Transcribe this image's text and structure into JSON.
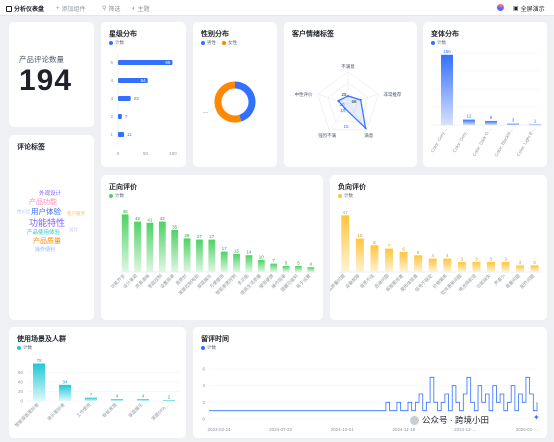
{
  "topbar": {
    "title": "分析仪表盘",
    "add_component": "添加组件",
    "filter": "筛选",
    "theme": "主题",
    "fullscreen": "全屏演示"
  },
  "kpi": {
    "label": "产品评论数量",
    "value": "194"
  },
  "legend_count": "计数",
  "star": {
    "title": "星级分布",
    "chart_data": {
      "type": "bar",
      "categories": [
        "5",
        "4",
        "3",
        "2",
        "1"
      ],
      "values": [
        99,
        54,
        23,
        7,
        11
      ],
      "xlim": [
        0,
        100
      ],
      "xticks": [
        "0",
        "50",
        "100"
      ]
    }
  },
  "gender": {
    "title": "性别分布",
    "legend": [
      "男性",
      "女性"
    ],
    "colors": [
      "#3370ff",
      "#ff8800"
    ],
    "chart_data": {
      "type": "pie",
      "slices": [
        {
          "name": "男性",
          "value": 45
        },
        {
          "name": "女性",
          "value": 55
        }
      ]
    },
    "side_label": "—"
  },
  "sentiment": {
    "title": "客户情绪标签",
    "chart_data": {
      "type": "radar",
      "axes": [
        "不满意",
        "非常推荐",
        "满意",
        "强烈不满",
        "中性评价"
      ],
      "values": [
        15,
        25,
        56,
        10,
        19
      ],
      "data_labels": [
        "25",
        "56",
        "10",
        "19",
        "15"
      ],
      "data_label_colors": [
        "#1f2329",
        "#1f2329",
        "#3370ff",
        "#3370ff",
        "#3370ff"
      ]
    }
  },
  "variant": {
    "title": "变体分布",
    "chart_data": {
      "type": "bar",
      "categories": [
        "Color: Grey…",
        "Color: Grey…",
        "Color: Dark G…",
        "Color: Blackbl…",
        "Color: Light B…"
      ],
      "values": [
        156,
        12,
        9,
        3,
        1
      ],
      "ylim": [
        0,
        160
      ]
    }
  },
  "tags": {
    "title": "评论标签",
    "words": [
      "外观设计",
      "产品功能",
      "用户体验",
      "功能特性",
      "产品使用体验",
      "产品质量",
      "操作便利",
      "性价比",
      "客户服务",
      "设计"
    ]
  },
  "positive": {
    "title": "正向评价",
    "chart_data": {
      "type": "bar",
      "categories": [
        "功能齐全",
        "设计美观",
        "声音清晰",
        "家庭控制",
        "设置简单",
        "音质好",
        "家居控制有助",
        "家庭娱乐",
        "方便使用",
        "智能家居控制",
        "多功能",
        "提高生活质量",
        "使用便捷",
        "操作简单",
        "提醒功能好",
        "易于设置"
      ],
      "values": [
        48,
        42,
        41,
        42,
        35,
        28,
        27,
        27,
        17,
        15,
        14,
        10,
        7,
        5,
        5,
        4
      ],
      "ylim": [
        0,
        50
      ]
    }
  },
  "negative": {
    "title": "负向评价",
    "chart_data": {
      "type": "bar",
      "categories": [
        "产品质量问题",
        "设备故障",
        "音质不佳",
        "连接问题",
        "客服服务差",
        "使用体验差",
        "信号不稳定",
        "价格偏高",
        "软件更新问题",
        "电池续航短",
        "功能缺失",
        "声音小",
        "音量问题",
        "配件问题"
      ],
      "values": [
        17,
        10,
        8,
        7,
        6,
        5,
        4,
        4,
        3,
        3,
        3,
        3,
        2,
        2
      ],
      "ylim": [
        0,
        18
      ]
    }
  },
  "scene": {
    "title": "使用场景及人群",
    "chart_data": {
      "type": "bar",
      "categories": [
        "智能家居爱好者",
        "音乐爱好者",
        "工作使用",
        "智能家居",
        "家庭娱乐",
        "家居SPA…"
      ],
      "values": [
        79,
        34,
        7,
        4,
        4,
        2
      ],
      "ylim": [
        0,
        80
      ],
      "yticks": [
        "60",
        "40",
        "20",
        "0"
      ]
    }
  },
  "retention": {
    "title": "留评时间",
    "chart_data": {
      "type": "line",
      "x_ticks": [
        "2023-02-24",
        "2024-07-22",
        "2024-10-01",
        "2024-11-18",
        "2024-12-…",
        "2025-01-…"
      ],
      "yticks": [
        "6",
        "4",
        "2",
        "0"
      ],
      "ylim": [
        0,
        6
      ],
      "values": [
        1,
        1,
        1,
        1,
        1,
        1,
        1,
        1,
        1,
        1,
        1,
        1,
        1,
        1,
        1,
        1,
        1,
        1,
        1,
        1,
        1,
        1,
        1,
        1,
        1,
        1,
        1,
        1,
        1,
        1,
        1,
        1,
        1,
        1,
        1,
        1,
        1,
        1,
        1,
        1,
        1,
        1,
        1,
        1,
        1,
        1,
        1,
        1,
        2,
        1,
        1,
        2,
        1,
        1,
        2,
        1,
        2,
        3,
        1,
        2,
        5,
        2,
        1,
        2,
        3,
        1,
        4,
        2,
        1,
        3,
        5,
        2,
        1,
        4,
        2,
        3,
        1,
        4,
        2,
        3,
        1,
        2,
        4,
        1,
        3,
        2,
        5,
        3,
        1,
        2
      ]
    }
  },
  "watermark": "公众号 · 跨境小田"
}
